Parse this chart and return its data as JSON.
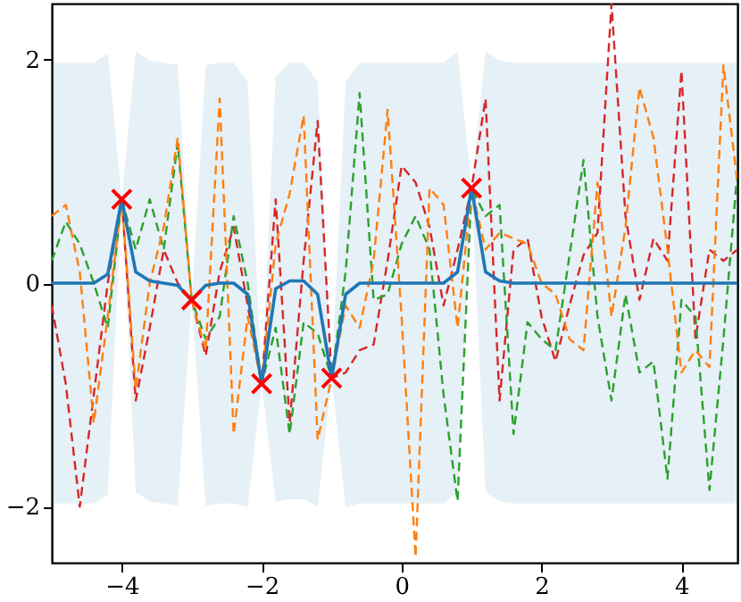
{
  "chart_data": {
    "type": "line",
    "x": [
      -5,
      -4.8,
      -4.6,
      -4.4,
      -4.2,
      -4,
      -3.8,
      -3.6,
      -3.4,
      -3.2,
      -3,
      -2.8,
      -2.6,
      -2.4,
      -2.2,
      -2,
      -1.8,
      -1.6,
      -1.4,
      -1.2,
      -1,
      -0.8,
      -0.6,
      -0.4,
      -0.2,
      0,
      0.2,
      0.4,
      0.6,
      0.8,
      1,
      1.2,
      1.4,
      1.6,
      1.8,
      2,
      2.2,
      2.4,
      2.6,
      2.8,
      3,
      3.2,
      3.4,
      3.6,
      3.8,
      4,
      4.2,
      4.4,
      4.6,
      4.8
    ],
    "xlim": [
      -5,
      4.8
    ],
    "ylim": [
      -2.5,
      2.5
    ],
    "xticks": [
      -4,
      -2,
      0,
      2,
      4
    ],
    "yticks": [
      -2,
      0,
      2
    ],
    "grid": false,
    "series": [
      {
        "color": "#1f77b4",
        "line_style": "solid",
        "values": [
          0,
          0,
          0,
          0,
          0.08,
          0.75,
          0.1,
          0.02,
          0,
          -0.02,
          -0.15,
          -0.02,
          0,
          0,
          -0.1,
          -0.9,
          -0.05,
          0.02,
          0.02,
          -0.1,
          -0.85,
          -0.1,
          0,
          0,
          0,
          0,
          0,
          0,
          0,
          0.1,
          0.85,
          0.1,
          0.02,
          0,
          0,
          0,
          0,
          0,
          0,
          0,
          0,
          0,
          0,
          0,
          0,
          0,
          0,
          0,
          0,
          0
        ],
        "upper": [
          1.97,
          1.97,
          1.97,
          1.97,
          2.05,
          0.75,
          2.07,
          1.99,
          1.97,
          1.95,
          -0.15,
          1.95,
          1.97,
          1.97,
          1.8,
          -0.9,
          1.85,
          1.97,
          1.97,
          1.8,
          -0.85,
          1.8,
          1.97,
          1.97,
          1.97,
          1.97,
          1.97,
          1.97,
          1.97,
          2.07,
          0.85,
          2.07,
          1.99,
          1.97,
          1.97,
          1.97,
          1.97,
          1.97,
          1.97,
          1.97,
          1.97,
          1.97,
          1.97,
          1.97,
          1.97,
          1.97,
          1.97,
          1.97,
          1.97,
          1.97
        ],
        "lower": [
          -1.97,
          -1.97,
          -1.97,
          -1.97,
          -1.89,
          0.75,
          -1.87,
          -1.95,
          -1.97,
          -1.99,
          -0.15,
          -1.99,
          -1.97,
          -1.97,
          -2.0,
          -0.9,
          -1.95,
          -1.93,
          -1.93,
          -2.0,
          -0.85,
          -2.0,
          -1.97,
          -1.97,
          -1.97,
          -1.97,
          -1.97,
          -1.97,
          -1.97,
          -1.87,
          0.85,
          -1.87,
          -1.95,
          -1.97,
          -1.97,
          -1.97,
          -1.97,
          -1.97,
          -1.97,
          -1.97,
          -1.97,
          -1.97,
          -1.97,
          -1.97,
          -1.97,
          -1.97,
          -1.97,
          -1.97,
          -1.97,
          -1.97
        ]
      },
      {
        "color": "#d62728",
        "line_style": "dashed",
        "values": [
          -0.2,
          -0.9,
          -2.0,
          -1.0,
          0.0,
          0.75,
          -1.05,
          -0.4,
          0.3,
          0.0,
          -0.15,
          -0.65,
          0.1,
          0.5,
          -0.2,
          -0.9,
          0.75,
          -1.25,
          0.2,
          1.45,
          -0.85,
          -0.8,
          -0.6,
          -0.55,
          0.2,
          1.05,
          0.9,
          0.5,
          -0.2,
          0.3,
          0.85,
          1.65,
          -1.05,
          0.3,
          0.4,
          -0.3,
          -0.7,
          -0.2,
          0.25,
          0.45,
          2.5,
          0.6,
          -0.15,
          0.4,
          0.2,
          1.9,
          -0.5,
          0.3,
          0.2,
          0.3
        ]
      },
      {
        "color": "#2ca02c",
        "line_style": "dashed",
        "values": [
          0.2,
          0.55,
          0.35,
          0.0,
          -0.4,
          0.75,
          0.3,
          0.75,
          0.3,
          1.25,
          -0.15,
          -0.5,
          -0.3,
          0.6,
          0.0,
          -0.9,
          -0.4,
          -1.35,
          -0.35,
          -0.45,
          -0.85,
          0.1,
          1.7,
          -0.15,
          -0.1,
          0.35,
          0.6,
          0.3,
          -1.0,
          -1.95,
          0.85,
          0.6,
          0.7,
          -1.35,
          -0.35,
          -0.5,
          -0.6,
          0.25,
          1.1,
          -0.3,
          -1.05,
          -0.1,
          -0.8,
          -0.7,
          -1.75,
          -0.15,
          -0.3,
          -1.85,
          -0.5,
          1.0
        ]
      },
      {
        "color": "#ff7f0e",
        "line_style": "dashed",
        "values": [
          0.6,
          0.7,
          0.1,
          -1.25,
          -0.3,
          0.75,
          -0.95,
          0.0,
          0.5,
          1.3,
          -0.15,
          -0.6,
          1.65,
          -1.35,
          -0.3,
          -0.9,
          0.35,
          0.8,
          1.5,
          -1.4,
          -0.85,
          -0.2,
          -0.4,
          0.2,
          1.55,
          -0.3,
          -2.45,
          0.85,
          0.7,
          -0.4,
          0.85,
          0.3,
          0.45,
          0.4,
          0.35,
          0.0,
          -0.1,
          -0.5,
          -0.6,
          0.9,
          -0.3,
          0.5,
          1.75,
          1.3,
          0.3,
          -0.8,
          -0.6,
          -0.75,
          1.95,
          0.9
        ]
      },
      {
        "type": "scatter",
        "color": "#ff0000",
        "marker": "cross",
        "x": [
          -4,
          -3,
          -2,
          -1,
          1
        ],
        "values": [
          0.75,
          -0.15,
          -0.9,
          -0.85,
          0.85
        ]
      }
    ]
  }
}
